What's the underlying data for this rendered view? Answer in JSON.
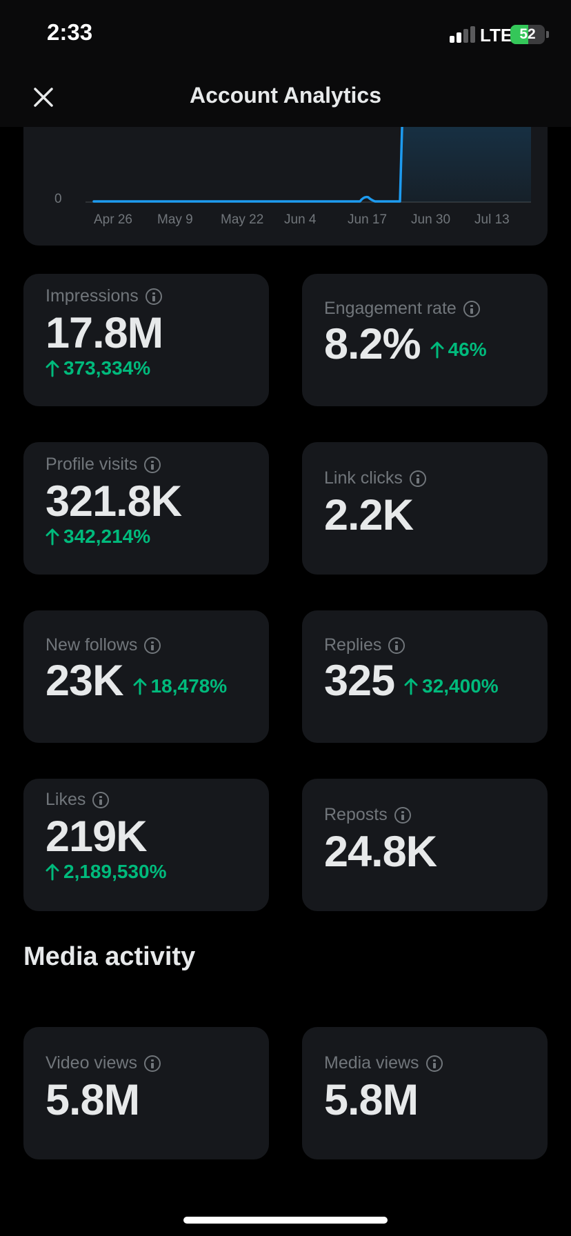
{
  "status_bar": {
    "time": "2:33",
    "network": "LTE",
    "battery": "52",
    "battery_level": 0.52
  },
  "header": {
    "title": "Account Analytics",
    "close_icon": "close-icon"
  },
  "chart": {
    "y_tick_label": "0",
    "x_tick_labels": [
      "Apr 26",
      "May 9",
      "May 22",
      "Jun 4",
      "Jun 17",
      "Jun 30",
      "Jul 13"
    ],
    "line_color": "#1d9bf0"
  },
  "metrics": [
    {
      "label": "Impressions",
      "value": "17.8M",
      "change": "373,334%"
    },
    {
      "label": "Engagement rate",
      "value": "8.2%",
      "change": "46%"
    },
    {
      "label": "Profile visits",
      "value": "321.8K",
      "change": "342,214%"
    },
    {
      "label": "Link clicks",
      "value": "2.2K"
    },
    {
      "label": "New follows",
      "value": "23K",
      "change": "18,478%"
    },
    {
      "label": "Replies",
      "value": "325",
      "change": "32,400%"
    },
    {
      "label": "Likes",
      "value": "219K",
      "change": "2,189,530%"
    },
    {
      "label": "Reposts",
      "value": "24.8K"
    }
  ],
  "media_section": {
    "title": "Media activity",
    "metrics": [
      {
        "label": "Video views",
        "value": "5.8M"
      },
      {
        "label": "Media views",
        "value": "5.8M"
      }
    ]
  },
  "colors": {
    "accent": "#1d9bf0",
    "positive": "#00ba7c",
    "card": "#16181c",
    "muted": "#71767b"
  }
}
